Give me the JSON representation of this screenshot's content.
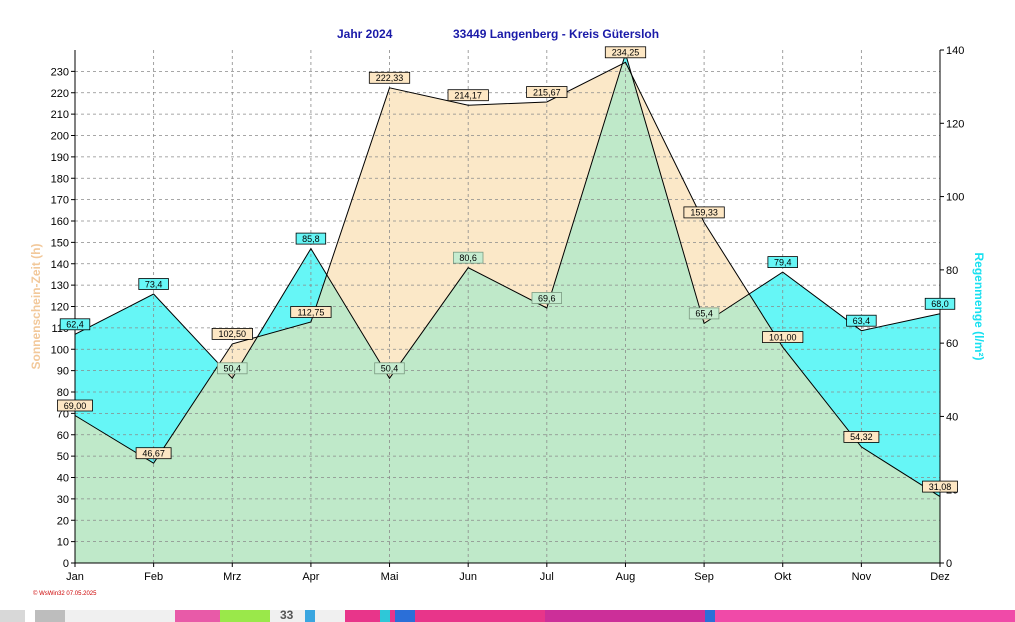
{
  "header": {
    "year_label": "Jahr  2024",
    "station_label": "33449 Langenberg - Kreis Gütersloh"
  },
  "credit": "© WsWin32  07.05.2025",
  "strip_text": "33",
  "colors": {
    "sunshine_fill": "#fbe8c8",
    "rain_fill": "#66f6f6",
    "overlap_fill": "#bfe9c9",
    "grid": "#8a8a8a",
    "sun_axis_label": "#f2c89a",
    "rain_axis_label": "#18e0f0",
    "title": "#1a1aa8"
  },
  "chart_data": {
    "type": "area",
    "categories": [
      "Jan",
      "Feb",
      "Mrz",
      "Apr",
      "Mai",
      "Jun",
      "Jul",
      "Aug",
      "Sep",
      "Okt",
      "Nov",
      "Dez"
    ],
    "series": [
      {
        "name": "Sonnenschein-Zeit",
        "axis": "left",
        "values": [
          69.0,
          46.67,
          102.5,
          112.75,
          222.33,
          214.17,
          215.67,
          234.25,
          159.33,
          101.0,
          54.32,
          31.08
        ],
        "labels": [
          "69,00",
          "46,67",
          "102,50",
          "112,75",
          "222,33",
          "214,17",
          "215,67",
          "234,25",
          "159,33",
          "101,00",
          "54,32",
          "31,08"
        ]
      },
      {
        "name": "Regenmenge",
        "axis": "right",
        "values": [
          62.4,
          73.4,
          50.4,
          85.8,
          50.4,
          80.6,
          69.6,
          139.0,
          65.4,
          79.4,
          63.4,
          68.0
        ],
        "labels": [
          "62,4",
          "73,4",
          "50,4",
          "85,8",
          "50,4",
          "80,6",
          "69,6",
          "",
          "65,4",
          "79,4",
          "63,4",
          "68,0"
        ]
      }
    ],
    "left_axis": {
      "label": "Sonnenschein-Zeit (h)",
      "min": 0,
      "max": 240,
      "ticks": [
        0,
        10,
        20,
        30,
        40,
        50,
        60,
        70,
        80,
        90,
        100,
        110,
        120,
        130,
        140,
        150,
        160,
        170,
        180,
        190,
        200,
        210,
        220,
        230
      ]
    },
    "right_axis": {
      "label": "Regenmenge (l/m²)",
      "min": 0,
      "max": 140,
      "ticks": [
        0,
        20,
        40,
        60,
        80,
        100,
        120,
        140
      ]
    },
    "grid": true
  }
}
